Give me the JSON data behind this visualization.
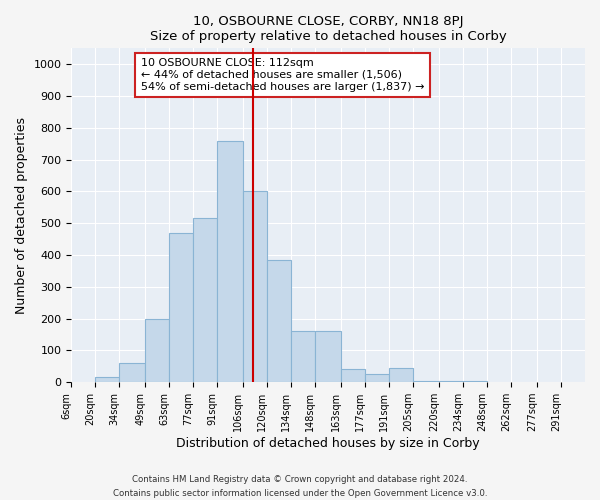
{
  "title": "10, OSBOURNE CLOSE, CORBY, NN18 8PJ",
  "subtitle": "Size of property relative to detached houses in Corby",
  "xlabel": "Distribution of detached houses by size in Corby",
  "ylabel": "Number of detached properties",
  "tick_labels": [
    "6sqm",
    "20sqm",
    "34sqm",
    "49sqm",
    "63sqm",
    "77sqm",
    "91sqm",
    "106sqm",
    "120sqm",
    "134sqm",
    "148sqm",
    "163sqm",
    "177sqm",
    "191sqm",
    "205sqm",
    "220sqm",
    "234sqm",
    "248sqm",
    "262sqm",
    "277sqm",
    "291sqm"
  ],
  "bin_edges": [
    6,
    20,
    34,
    49,
    63,
    77,
    91,
    106,
    120,
    134,
    148,
    163,
    177,
    191,
    205,
    220,
    234,
    248,
    262,
    277,
    291,
    305
  ],
  "bar_heights": [
    0,
    15,
    60,
    200,
    470,
    515,
    760,
    600,
    385,
    160,
    160,
    42,
    25,
    45,
    5,
    5,
    5,
    0,
    0,
    0,
    0
  ],
  "bar_color": "#c5d8ea",
  "bar_edge_color": "#8ab4d4",
  "vline_x": 112,
  "vline_color": "#cc0000",
  "annotation_title": "10 OSBOURNE CLOSE: 112sqm",
  "annotation_line1": "← 44% of detached houses are smaller (1,506)",
  "annotation_line2": "54% of semi-detached houses are larger (1,837) →",
  "annotation_box_facecolor": "#ffffff",
  "annotation_box_edgecolor": "#cc2222",
  "ylim": [
    0,
    1050
  ],
  "yticks": [
    0,
    100,
    200,
    300,
    400,
    500,
    600,
    700,
    800,
    900,
    1000
  ],
  "footer1": "Contains HM Land Registry data © Crown copyright and database right 2024.",
  "footer2": "Contains public sector information licensed under the Open Government Licence v3.0.",
  "fig_facecolor": "#f5f5f5",
  "plot_facecolor": "#e8eef5"
}
